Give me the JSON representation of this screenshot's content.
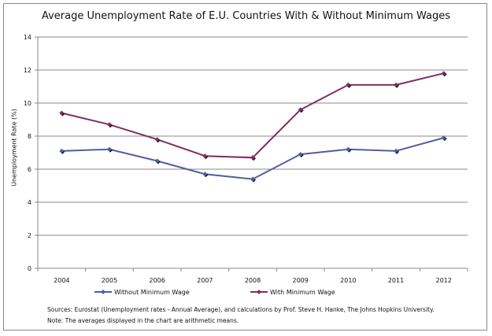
{
  "chart_data": {
    "type": "line",
    "title": "Average Unemployment Rate of E.U. Countries With & Without Minimum Wages",
    "xlabel": "",
    "ylabel": "Unemployment Rate (%)",
    "ylim": [
      0,
      14
    ],
    "yticks": [
      "0",
      "2",
      "4",
      "6",
      "8",
      "10",
      "12",
      "14"
    ],
    "grid": true,
    "legend_position": "bottom",
    "categories": [
      "2004",
      "2005",
      "2006",
      "2007",
      "2008",
      "2009",
      "2010",
      "2011",
      "2012"
    ],
    "series": [
      {
        "name": "Without Minimum Wage",
        "color": "#4F5F9F",
        "values": [
          7.1,
          7.2,
          6.5,
          5.7,
          5.4,
          6.9,
          7.2,
          7.1,
          7.9
        ]
      },
      {
        "name": "With Minimum Wage",
        "color": "#7F2F5F",
        "values": [
          9.4,
          8.7,
          7.8,
          6.8,
          6.7,
          9.6,
          11.1,
          11.1,
          11.8
        ]
      }
    ]
  },
  "notes": {
    "sources": "Sources: Eurostat (Unemployment rates - Annual Average), and calculations by Prof. Steve H. Hanke, The Johns Hopkins University.",
    "note": "Note: The averages displayed in the chart are arithmetic means."
  }
}
